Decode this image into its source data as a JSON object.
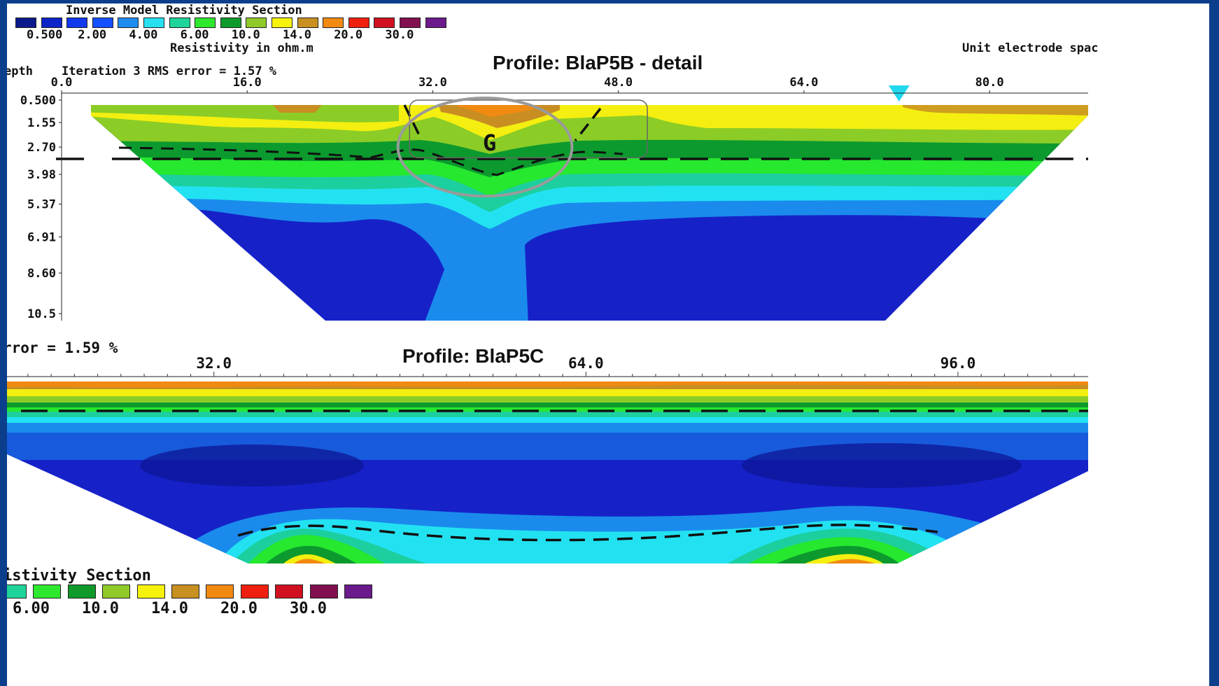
{
  "colors": {
    "frame": "#0b3f8c",
    "palette": [
      "#0b1a8a",
      "#0d24c8",
      "#1238ee",
      "#1450ff",
      "#1f8cf0",
      "#26e0f0",
      "#1fd49a",
      "#2ee82e",
      "#0f9a2a",
      "#8fca28",
      "#f6f20c",
      "#c89020",
      "#f28a12",
      "#f02010",
      "#d01020",
      "#821050",
      "#6a1a8a"
    ],
    "dark_blue": "#1622c8",
    "mid_blue": "#1a8bec",
    "cyan": "#22e2f2",
    "teal": "#1ccf9e",
    "green": "#26e82e",
    "dark_green": "#0c9a2e",
    "yellow_green": "#8ccc26",
    "yellow": "#f4ef10",
    "brown": "#c88e22",
    "orange": "#f08a10",
    "marker": "#22d8ee",
    "ellipse": "#9a9a9a"
  },
  "legend_top": {
    "title": "Inverse Model Resistivity Section",
    "values": [
      "0.500",
      "2.00",
      "4.00",
      "6.00",
      "10.0",
      "14.0",
      "20.0",
      "30.0"
    ],
    "units": "Resistivity in ohm.m"
  },
  "legend_bottom": {
    "title": "istivity Section",
    "values": [
      "6.00",
      "10.0",
      "14.0",
      "20.0",
      "30.0"
    ]
  },
  "unit_label": "Unit electrode spac",
  "section1": {
    "title": "Profile: BlaP5B - detail",
    "depth_label": "epth",
    "iteration_text": "Iteration 3 RMS error = 1.57 %",
    "annotation": "G"
  },
  "section2": {
    "title": "Profile: BlaP5C",
    "error_text": "rror = 1.59 %"
  },
  "chart_data": [
    {
      "type": "heatmap",
      "title": "Profile: BlaP5B - detail",
      "x_ticks": [
        "0.0",
        "16.0",
        "32.0",
        "48.0",
        "64.0",
        "80.0"
      ],
      "y_ticks": [
        "0.500",
        "1.55",
        "2.70",
        "3.98",
        "5.37",
        "6.91",
        "8.60",
        "10.5"
      ],
      "x_tick_values": [
        0,
        16,
        32,
        48,
        64,
        80
      ],
      "y_tick_values": [
        0.5,
        1.55,
        2.7,
        3.98,
        5.37,
        6.91,
        8.6,
        10.5
      ],
      "xlim": [
        0,
        88.5
      ],
      "ylim": [
        0.5,
        10.5
      ],
      "marker_x": 72.2,
      "ellipse": {
        "cx": 36.5,
        "cy": 2.7,
        "rx": 7.5,
        "ry": 2.3
      },
      "box": {
        "x0": 30,
        "x1": 50.5,
        "y0": 0.5,
        "y1": 3.2
      },
      "legend_values": [
        0.5,
        2.0,
        4.0,
        6.0,
        10.0,
        14.0,
        20.0,
        30.0
      ]
    },
    {
      "type": "heatmap",
      "title": "Profile: BlaP5C",
      "x_ticks": [
        "32.0",
        "64.0",
        "96.0"
      ],
      "x_tick_values": [
        32,
        64,
        96
      ],
      "xlim": [
        14.2,
        107.2
      ],
      "legend_values": [
        6.0,
        10.0,
        14.0,
        20.0,
        30.0
      ]
    }
  ]
}
